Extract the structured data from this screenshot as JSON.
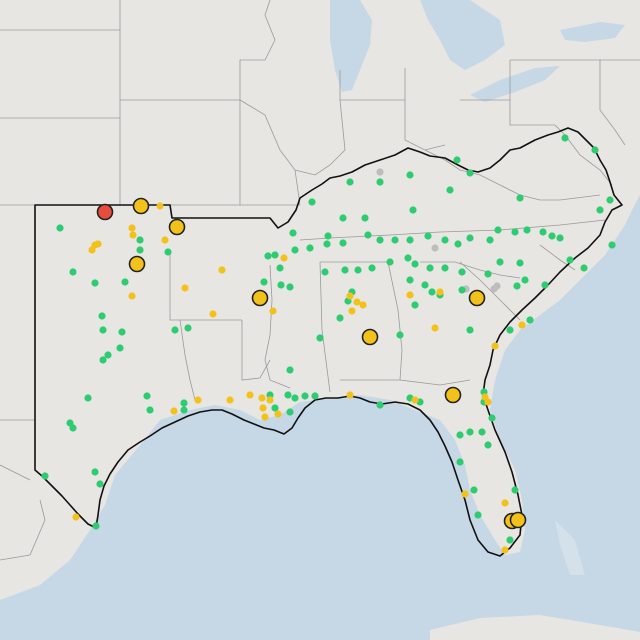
{
  "map": {
    "colors": {
      "land": "#e8e6e3",
      "water": "#c6d7e6",
      "good": "#2ecc71",
      "moderate": "#f2c21b",
      "unhealthy": "#e74c3c",
      "nodata": "#bdbdbd"
    },
    "small_points": {
      "good": [
        [
          60,
          228
        ],
        [
          73,
          272
        ],
        [
          95,
          283
        ],
        [
          125,
          282
        ],
        [
          102,
          316
        ],
        [
          103,
          330
        ],
        [
          122,
          332
        ],
        [
          108,
          355
        ],
        [
          120,
          348
        ],
        [
          103,
          360
        ],
        [
          147,
          396
        ],
        [
          150,
          410
        ],
        [
          184,
          403
        ],
        [
          184,
          410
        ],
        [
          70,
          423
        ],
        [
          73,
          428
        ],
        [
          88,
          398
        ],
        [
          95,
          472
        ],
        [
          100,
          484
        ],
        [
          45,
          476
        ],
        [
          96,
          526
        ],
        [
          175,
          330
        ],
        [
          188,
          328
        ],
        [
          168,
          252
        ],
        [
          140,
          240
        ],
        [
          140,
          250
        ],
        [
          275,
          255
        ],
        [
          293,
          233
        ],
        [
          312,
          202
        ],
        [
          328,
          236
        ],
        [
          343,
          218
        ],
        [
          350,
          182
        ],
        [
          365,
          218
        ],
        [
          380,
          182
        ],
        [
          410,
          175
        ],
        [
          457,
          160
        ],
        [
          470,
          173
        ],
        [
          450,
          190
        ],
        [
          413,
          210
        ],
        [
          520,
          198
        ],
        [
          565,
          138
        ],
        [
          595,
          150
        ],
        [
          610,
          200
        ],
        [
          600,
          210
        ],
        [
          612,
          245
        ],
        [
          560,
          238
        ],
        [
          552,
          236
        ],
        [
          543,
          232
        ],
        [
          527,
          230
        ],
        [
          515,
          232
        ],
        [
          498,
          230
        ],
        [
          490,
          240
        ],
        [
          470,
          238
        ],
        [
          458,
          244
        ],
        [
          445,
          240
        ],
        [
          428,
          236
        ],
        [
          410,
          240
        ],
        [
          395,
          240
        ],
        [
          380,
          240
        ],
        [
          368,
          235
        ],
        [
          343,
          243
        ],
        [
          327,
          244
        ],
        [
          310,
          248
        ],
        [
          295,
          250
        ],
        [
          268,
          256
        ],
        [
          280,
          268
        ],
        [
          264,
          282
        ],
        [
          281,
          285
        ],
        [
          290,
          287
        ],
        [
          325,
          272
        ],
        [
          345,
          270
        ],
        [
          358,
          270
        ],
        [
          372,
          268
        ],
        [
          390,
          262
        ],
        [
          408,
          258
        ],
        [
          415,
          264
        ],
        [
          430,
          268
        ],
        [
          445,
          268
        ],
        [
          462,
          272
        ],
        [
          488,
          274
        ],
        [
          500,
          262
        ],
        [
          520,
          263
        ],
        [
          517,
          286
        ],
        [
          525,
          280
        ],
        [
          545,
          285
        ],
        [
          570,
          260
        ],
        [
          584,
          268
        ],
        [
          415,
          305
        ],
        [
          425,
          285
        ],
        [
          432,
          292
        ],
        [
          440,
          295
        ],
        [
          462,
          290
        ],
        [
          340,
          318
        ],
        [
          348,
          301
        ],
        [
          352,
          292
        ],
        [
          320,
          338
        ],
        [
          290,
          370
        ],
        [
          288,
          395
        ],
        [
          295,
          398
        ],
        [
          305,
          396
        ],
        [
          315,
          396
        ],
        [
          380,
          405
        ],
        [
          420,
          402
        ],
        [
          410,
          398
        ],
        [
          410,
          280
        ],
        [
          400,
          335
        ],
        [
          484,
          392
        ],
        [
          484,
          402
        ],
        [
          492,
          418
        ],
        [
          460,
          435
        ],
        [
          470,
          432
        ],
        [
          482,
          432
        ],
        [
          488,
          445
        ],
        [
          460,
          462
        ],
        [
          474,
          490
        ],
        [
          478,
          515
        ],
        [
          515,
          490
        ],
        [
          510,
          540
        ],
        [
          530,
          320
        ],
        [
          510,
          330
        ],
        [
          470,
          330
        ],
        [
          270,
          395
        ],
        [
          275,
          408
        ],
        [
          290,
          412
        ]
      ],
      "moderate": [
        [
          95,
          245
        ],
        [
          92,
          250
        ],
        [
          98,
          244
        ],
        [
          132,
          228
        ],
        [
          133,
          235
        ],
        [
          160,
          206
        ],
        [
          165,
          240
        ],
        [
          185,
          288
        ],
        [
          213,
          314
        ],
        [
          222,
          270
        ],
        [
          132,
          296
        ],
        [
          174,
          411
        ],
        [
          198,
          400
        ],
        [
          230,
          400
        ],
        [
          250,
          395
        ],
        [
          262,
          398
        ],
        [
          263,
          408
        ],
        [
          265,
          417
        ],
        [
          278,
          414
        ],
        [
          273,
          311
        ],
        [
          284,
          258
        ],
        [
          350,
          296
        ],
        [
          352,
          311
        ],
        [
          357,
          302
        ],
        [
          363,
          305
        ],
        [
          350,
          395
        ],
        [
          415,
          400
        ],
        [
          410,
          295
        ],
        [
          440,
          292
        ],
        [
          495,
          346
        ],
        [
          488,
          402
        ],
        [
          485,
          397
        ],
        [
          435,
          328
        ],
        [
          465,
          494
        ],
        [
          505,
          503
        ],
        [
          505,
          550
        ],
        [
          76,
          517
        ],
        [
          270,
          400
        ],
        [
          522,
          325
        ]
      ],
      "nodata": [
        [
          380,
          172
        ],
        [
          435,
          248
        ],
        [
          466,
          289
        ],
        [
          494,
          289
        ],
        [
          497,
          286
        ]
      ]
    },
    "big_points": {
      "unhealthy": [
        [
          105,
          212
        ]
      ],
      "moderate": [
        [
          141,
          206
        ],
        [
          177,
          227
        ],
        [
          137,
          264
        ],
        [
          260,
          298
        ],
        [
          370,
          337
        ],
        [
          477,
          298
        ],
        [
          453,
          395
        ],
        [
          512,
          521
        ],
        [
          518,
          520
        ]
      ]
    },
    "legend": []
  }
}
